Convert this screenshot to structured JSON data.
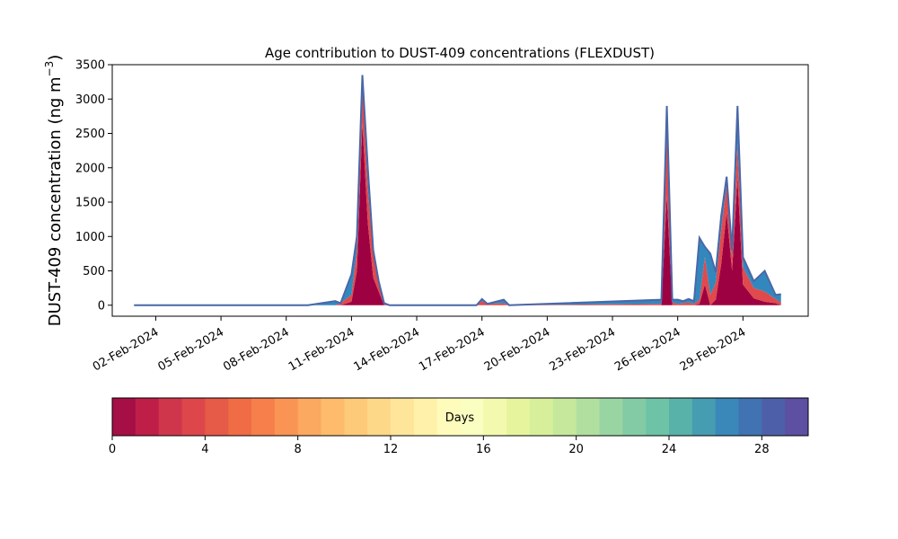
{
  "chart_data": {
    "type": "area",
    "stacked": true,
    "title": "Age contribution to DUST-409 concentrations (FLEXDUST)",
    "ylabel_main": "DUST-409 concentration (ng m",
    "ylabel_sup": "−3",
    "ylabel_tail": ")",
    "ylim": [
      -160,
      3500
    ],
    "yticks": [
      0,
      500,
      1000,
      1500,
      2000,
      2500,
      3000,
      3500
    ],
    "xlim": [
      "2024-01-31T00:00",
      "2024-03-03T00:00"
    ],
    "xticks": [
      {
        "date": "2024-02-02",
        "label": "02-Feb-2024"
      },
      {
        "date": "2024-02-05",
        "label": "05-Feb-2024"
      },
      {
        "date": "2024-02-08",
        "label": "08-Feb-2024"
      },
      {
        "date": "2024-02-11",
        "label": "11-Feb-2024"
      },
      {
        "date": "2024-02-14",
        "label": "14-Feb-2024"
      },
      {
        "date": "2024-02-17",
        "label": "17-Feb-2024"
      },
      {
        "date": "2024-02-20",
        "label": "20-Feb-2024"
      },
      {
        "date": "2024-02-23",
        "label": "23-Feb-2024"
      },
      {
        "date": "2024-02-26",
        "label": "26-Feb-2024"
      },
      {
        "date": "2024-02-29",
        "label": "29-Feb-2024"
      }
    ],
    "grid": false,
    "series": [
      {
        "color": "#9e0142",
        "x": [
          "2024-02-01T00:00",
          "2024-02-09T00:00",
          "2024-02-10T06:00",
          "2024-02-10T12:00",
          "2024-02-11T00:00",
          "2024-02-11T06:00",
          "2024-02-11T12:00",
          "2024-02-11T18:00",
          "2024-02-12T00:00",
          "2024-02-12T06:00",
          "2024-02-12T12:00",
          "2024-02-12T18:00",
          "2024-02-13T00:00",
          "2024-02-16T18:00",
          "2024-02-17T00:00",
          "2024-02-17T06:00",
          "2024-02-18T00:00",
          "2024-02-18T06:00",
          "2024-02-25T06:00",
          "2024-02-25T12:00",
          "2024-02-25T18:00",
          "2024-02-26T00:00",
          "2024-02-26T06:00",
          "2024-02-26T12:00",
          "2024-02-26T18:00",
          "2024-02-27T00:00",
          "2024-02-27T06:00",
          "2024-02-27T12:00",
          "2024-02-27T18:00",
          "2024-02-28T00:00",
          "2024-02-28T06:00",
          "2024-02-28T12:00",
          "2024-02-28T18:00",
          "2024-02-29T00:00",
          "2024-02-29T12:00",
          "2024-03-01T00:00",
          "2024-03-01T12:00",
          "2024-03-01T18:00"
        ],
        "values": [
          0,
          0,
          0,
          0,
          50,
          500,
          2650,
          1200,
          400,
          200,
          0,
          0,
          0,
          0,
          0,
          0,
          0,
          0,
          0,
          1600,
          0,
          0,
          0,
          0,
          0,
          20,
          300,
          0,
          80,
          600,
          1350,
          500,
          1850,
          300,
          100,
          50,
          30,
          0
        ]
      },
      {
        "color": "#e04a4c",
        "x": [
          "2024-02-01T00:00",
          "2024-02-09T00:00",
          "2024-02-10T06:00",
          "2024-02-10T12:00",
          "2024-02-11T00:00",
          "2024-02-11T06:00",
          "2024-02-11T12:00",
          "2024-02-11T18:00",
          "2024-02-12T00:00",
          "2024-02-12T06:00",
          "2024-02-12T12:00",
          "2024-02-12T18:00",
          "2024-02-13T00:00",
          "2024-02-16T18:00",
          "2024-02-17T00:00",
          "2024-02-17T06:00",
          "2024-02-18T00:00",
          "2024-02-18T06:00",
          "2024-02-25T06:00",
          "2024-02-25T12:00",
          "2024-02-25T18:00",
          "2024-02-26T00:00",
          "2024-02-26T06:00",
          "2024-02-26T12:00",
          "2024-02-26T18:00",
          "2024-02-27T00:00",
          "2024-02-27T06:00",
          "2024-02-27T12:00",
          "2024-02-27T18:00",
          "2024-02-28T00:00",
          "2024-02-28T06:00",
          "2024-02-28T12:00",
          "2024-02-28T18:00",
          "2024-02-29T00:00",
          "2024-02-29T12:00",
          "2024-03-01T00:00",
          "2024-03-01T12:00",
          "2024-03-01T18:00"
        ],
        "values": [
          0,
          0,
          0,
          30,
          100,
          300,
          600,
          500,
          350,
          150,
          30,
          0,
          0,
          0,
          60,
          20,
          30,
          0,
          20,
          900,
          40,
          20,
          30,
          40,
          20,
          60,
          400,
          150,
          250,
          500,
          400,
          200,
          500,
          250,
          150,
          150,
          60,
          40
        ]
      },
      {
        "color": "#3288bd",
        "x": [
          "2024-02-01T00:00",
          "2024-02-09T00:00",
          "2024-02-10T06:00",
          "2024-02-10T12:00",
          "2024-02-11T00:00",
          "2024-02-11T06:00",
          "2024-02-11T12:00",
          "2024-02-11T18:00",
          "2024-02-12T00:00",
          "2024-02-12T06:00",
          "2024-02-12T12:00",
          "2024-02-12T18:00",
          "2024-02-13T00:00",
          "2024-02-16T18:00",
          "2024-02-17T00:00",
          "2024-02-17T06:00",
          "2024-02-18T00:00",
          "2024-02-18T06:00",
          "2024-02-25T06:00",
          "2024-02-25T12:00",
          "2024-02-25T18:00",
          "2024-02-26T00:00",
          "2024-02-26T06:00",
          "2024-02-26T12:00",
          "2024-02-26T18:00",
          "2024-02-27T00:00",
          "2024-02-27T06:00",
          "2024-02-27T12:00",
          "2024-02-27T18:00",
          "2024-02-28T00:00",
          "2024-02-28T06:00",
          "2024-02-28T12:00",
          "2024-02-28T18:00",
          "2024-02-29T00:00",
          "2024-02-29T12:00",
          "2024-03-01T00:00",
          "2024-03-01T12:00",
          "2024-03-01T18:00"
        ],
        "values": [
          0,
          0,
          60,
          0,
          300,
          200,
          100,
          300,
          50,
          0,
          0,
          0,
          0,
          0,
          30,
          0,
          50,
          0,
          60,
          400,
          40,
          60,
          30,
          50,
          40,
          900,
          150,
          600,
          150,
          200,
          120,
          100,
          550,
          150,
          100,
          300,
          60,
          120
        ]
      }
    ],
    "colorbar": {
      "label": "Days",
      "range": [
        0,
        30
      ],
      "ticks": [
        0,
        4,
        8,
        12,
        16,
        20,
        24,
        28
      ],
      "tick_labels": [
        "0",
        "4",
        "8",
        "12",
        "16",
        "20",
        "24",
        "28"
      ],
      "colors": [
        "#a50f45",
        "#be1e48",
        "#cf364b",
        "#dd464b",
        "#e65a48",
        "#ef6c45",
        "#f67f4b",
        "#f99455",
        "#fba860",
        "#fdbb6b",
        "#fdca79",
        "#fed889",
        "#fee599",
        "#fff1a9",
        "#fffbbb",
        "#fafec0",
        "#f3faaf",
        "#e6f59d",
        "#d7ef9b",
        "#c5e89d",
        "#b1df9f",
        "#99d5a3",
        "#83cba5",
        "#6ec2a6",
        "#59b2aa",
        "#469cb1",
        "#3a88b9",
        "#4172b1",
        "#4d5fa9",
        "#5d4fa2"
      ]
    }
  }
}
